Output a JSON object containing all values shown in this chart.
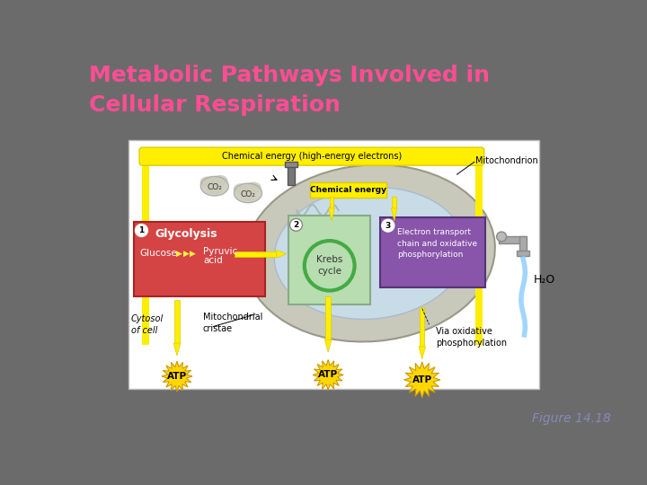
{
  "title_line1": "Metabolic Pathways Involved in",
  "title_line2": "Cellular Respiration",
  "title_color": "#FF4D94",
  "title_fontsize": 18,
  "bg_color": "#6B6B6B",
  "figure_label": "Figure 14.18",
  "figure_label_color": "#8888BB",
  "figure_label_fontsize": 10,
  "yellow": "#FFEE00",
  "yellow_dark": "#DDCC00",
  "red_box": "#D94444",
  "green_box": "#B8DDB0",
  "purple_box": "#8855AA",
  "mito_outer": "#C8C8C8",
  "mito_inner": "#C8E0E8",
  "white": "#FFFFFF",
  "black": "#000000",
  "gray_cloud": "#C8C8C8",
  "atp_yellow": "#FFD700",
  "water_blue": "#88CCFF"
}
